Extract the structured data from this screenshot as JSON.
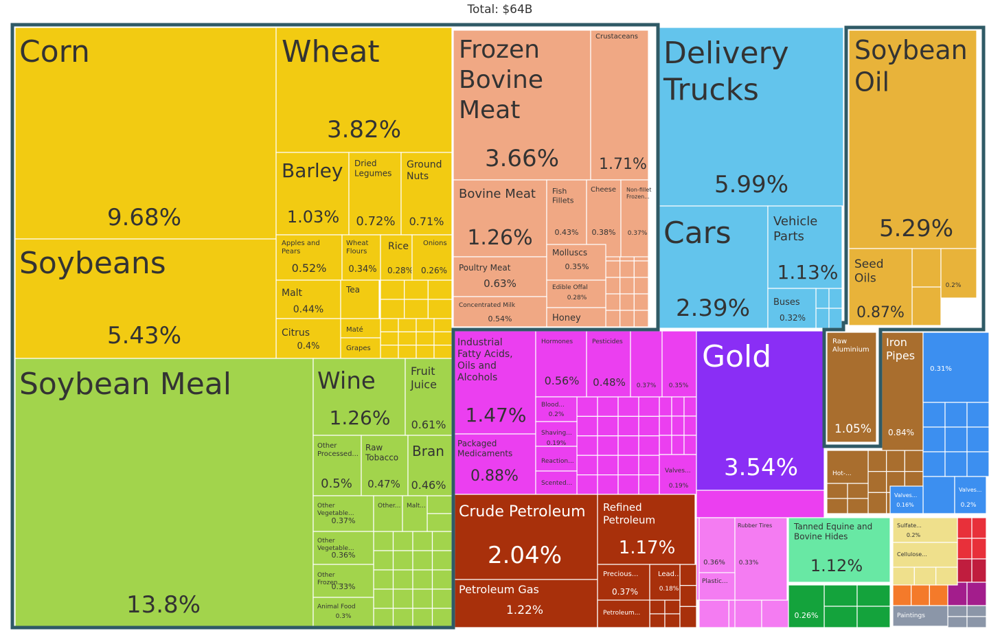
{
  "header": {
    "total_label": "Total: $64B"
  },
  "chart_data": {
    "type": "treemap",
    "title": "Total: $64B",
    "value_unit": "% of total",
    "tiles": [
      {
        "name": "Corn",
        "pct": "9.68%",
        "color": "#f2cb12"
      },
      {
        "name": "Wheat",
        "pct": "3.82%",
        "color": "#f2cb12"
      },
      {
        "name": "Barley",
        "pct": "1.03%",
        "color": "#f2cb12"
      },
      {
        "name": "Dried Legumes",
        "pct": "0.72%",
        "color": "#f2cb12"
      },
      {
        "name": "Ground Nuts",
        "pct": "0.71%",
        "color": "#f2cb12"
      },
      {
        "name": "Apples and Pears",
        "pct": "0.52%",
        "color": "#f2cb12"
      },
      {
        "name": "Wheat Flours",
        "pct": "0.34%",
        "color": "#f2cb12"
      },
      {
        "name": "Rice",
        "pct": "0.28%",
        "color": "#f2cb12"
      },
      {
        "name": "Onions",
        "pct": "0.26%",
        "color": "#f2cb12"
      },
      {
        "name": "Malt",
        "pct": "0.44%",
        "color": "#f2cb12"
      },
      {
        "name": "Tea",
        "pct": "",
        "color": "#f2cb12"
      },
      {
        "name": "Citrus",
        "pct": "0.4%",
        "color": "#f2cb12"
      },
      {
        "name": "Maté",
        "pct": "",
        "color": "#f2cb12"
      },
      {
        "name": "Grapes",
        "pct": "",
        "color": "#f2cb12"
      },
      {
        "name": "Soybeans",
        "pct": "5.43%",
        "color": "#f2cb12"
      },
      {
        "name": "Soybean Meal",
        "pct": "13.8%",
        "color": "#a2d44c"
      },
      {
        "name": "Wine",
        "pct": "1.26%",
        "color": "#a2d44c"
      },
      {
        "name": "Fruit Juice",
        "pct": "0.61%",
        "color": "#a2d44c"
      },
      {
        "name": "Other Processed...",
        "pct": "0.5%",
        "color": "#a2d44c"
      },
      {
        "name": "Raw Tobacco",
        "pct": "0.47%",
        "color": "#a2d44c"
      },
      {
        "name": "Bran",
        "pct": "0.46%",
        "color": "#a2d44c"
      },
      {
        "name": "Other Vegetable...",
        "pct": "0.37%",
        "color": "#a2d44c"
      },
      {
        "name": "Other...",
        "pct": "",
        "color": "#a2d44c"
      },
      {
        "name": "Malt...",
        "pct": "",
        "color": "#a2d44c"
      },
      {
        "name": "Other Vegetable...",
        "pct": "0.36%",
        "color": "#a2d44c"
      },
      {
        "name": "Other Frozen...",
        "pct": "0.33%",
        "color": "#a2d44c"
      },
      {
        "name": "Animal Food",
        "pct": "0.3%",
        "color": "#a2d44c"
      },
      {
        "name": "Frozen Bovine Meat",
        "pct": "3.66%",
        "color": "#f0a884"
      },
      {
        "name": "Crustaceans",
        "pct": "1.71%",
        "color": "#f0a884"
      },
      {
        "name": "Bovine Meat",
        "pct": "1.26%",
        "color": "#f0a884"
      },
      {
        "name": "Fish Fillets",
        "pct": "0.43%",
        "color": "#f0a884"
      },
      {
        "name": "Cheese",
        "pct": "0.38%",
        "color": "#f0a884"
      },
      {
        "name": "Non-fillet Frozen...",
        "pct": "0.37%",
        "color": "#f0a884"
      },
      {
        "name": "Poultry Meat",
        "pct": "0.63%",
        "color": "#f0a884"
      },
      {
        "name": "Molluscs",
        "pct": "0.35%",
        "color": "#f0a884"
      },
      {
        "name": "Edible Offal",
        "pct": "0.28%",
        "color": "#f0a884"
      },
      {
        "name": "Concentrated Milk",
        "pct": "0.54%",
        "color": "#f0a884"
      },
      {
        "name": "Honey",
        "pct": "",
        "color": "#f0a884"
      },
      {
        "name": "Delivery Trucks",
        "pct": "5.99%",
        "color": "#63c4ec"
      },
      {
        "name": "Cars",
        "pct": "2.39%",
        "color": "#63c4ec"
      },
      {
        "name": "Vehicle Parts",
        "pct": "1.13%",
        "color": "#63c4ec"
      },
      {
        "name": "Buses",
        "pct": "0.32%",
        "color": "#63c4ec"
      },
      {
        "name": "Soybean Oil",
        "pct": "5.29%",
        "color": "#e8b33a"
      },
      {
        "name": "Seed Oils",
        "pct": "0.87%",
        "color": "#e8b33a"
      },
      {
        "name": "",
        "pct": "0.2%",
        "color": "#e8b33a"
      },
      {
        "name": "Industrial Fatty Acids, Oils and Alcohols",
        "pct": "1.47%",
        "color": "#eb3ff0"
      },
      {
        "name": "Hormones",
        "pct": "0.56%",
        "color": "#eb3ff0"
      },
      {
        "name": "Pesticides",
        "pct": "0.48%",
        "color": "#eb3ff0"
      },
      {
        "name": "",
        "pct": "0.37%",
        "color": "#eb3ff0"
      },
      {
        "name": "",
        "pct": "0.35%",
        "color": "#eb3ff0"
      },
      {
        "name": "Packaged Medicaments",
        "pct": "0.88%",
        "color": "#eb3ff0"
      },
      {
        "name": "Blood...",
        "pct": "0.2%",
        "color": "#eb3ff0"
      },
      {
        "name": "Shaving...",
        "pct": "0.19%",
        "color": "#eb3ff0"
      },
      {
        "name": "Reaction...",
        "pct": "",
        "color": "#eb3ff0"
      },
      {
        "name": "Scented...",
        "pct": "",
        "color": "#eb3ff0"
      },
      {
        "name": "Valves...",
        "pct": "0.19%",
        "color": "#eb3ff0"
      },
      {
        "name": "Gold",
        "pct": "3.54%",
        "color": "#8a2ef5"
      },
      {
        "name": "Crude Petroleum",
        "pct": "2.04%",
        "color": "#a8300b"
      },
      {
        "name": "Refined Petroleum",
        "pct": "1.17%",
        "color": "#a8300b"
      },
      {
        "name": "Petroleum Gas",
        "pct": "1.22%",
        "color": "#a8300b"
      },
      {
        "name": "Precious...",
        "pct": "0.37%",
        "color": "#a8300b"
      },
      {
        "name": "Lead...",
        "pct": "0.18%",
        "color": "#a8300b"
      },
      {
        "name": "Petroleum...",
        "pct": "",
        "color": "#a8300b"
      },
      {
        "name": "Raw Aluminium",
        "pct": "1.05%",
        "color": "#a96e2e"
      },
      {
        "name": "Iron Pipes",
        "pct": "0.84%",
        "color": "#a96e2e"
      },
      {
        "name": "Hot-...",
        "pct": "",
        "color": "#a96e2e"
      },
      {
        "name": "",
        "pct": "0.31%",
        "color": "#3c8ff0"
      },
      {
        "name": "Valves...",
        "pct": "0.16%",
        "color": "#3c8ff0"
      },
      {
        "name": "Valves...",
        "pct": "0.2%",
        "color": "#3c8ff0"
      },
      {
        "name": "",
        "pct": "0.36%",
        "color": "#f47cf2"
      },
      {
        "name": "Rubber Tires",
        "pct": "0.33%",
        "color": "#f47cf2"
      },
      {
        "name": "Plastic...",
        "pct": "",
        "color": "#f47cf2"
      },
      {
        "name": "Tanned Equine and Bovine Hides",
        "pct": "1.12%",
        "color": "#68e8a4"
      },
      {
        "name": "",
        "pct": "0.26%",
        "color": "#14a33c"
      },
      {
        "name": "Sulfate...",
        "pct": "0.2%",
        "color": "#efe08c"
      },
      {
        "name": "Cellulose...",
        "pct": "",
        "color": "#efe08c"
      },
      {
        "name": "Paintings",
        "pct": "",
        "color": "#8b96a8"
      }
    ],
    "highlighted": [
      "Corn",
      "Wheat",
      "Soybeans",
      "Soybean Meal",
      "Frozen Bovine Meat",
      "Soybean Oil",
      "Raw Aluminium"
    ]
  }
}
